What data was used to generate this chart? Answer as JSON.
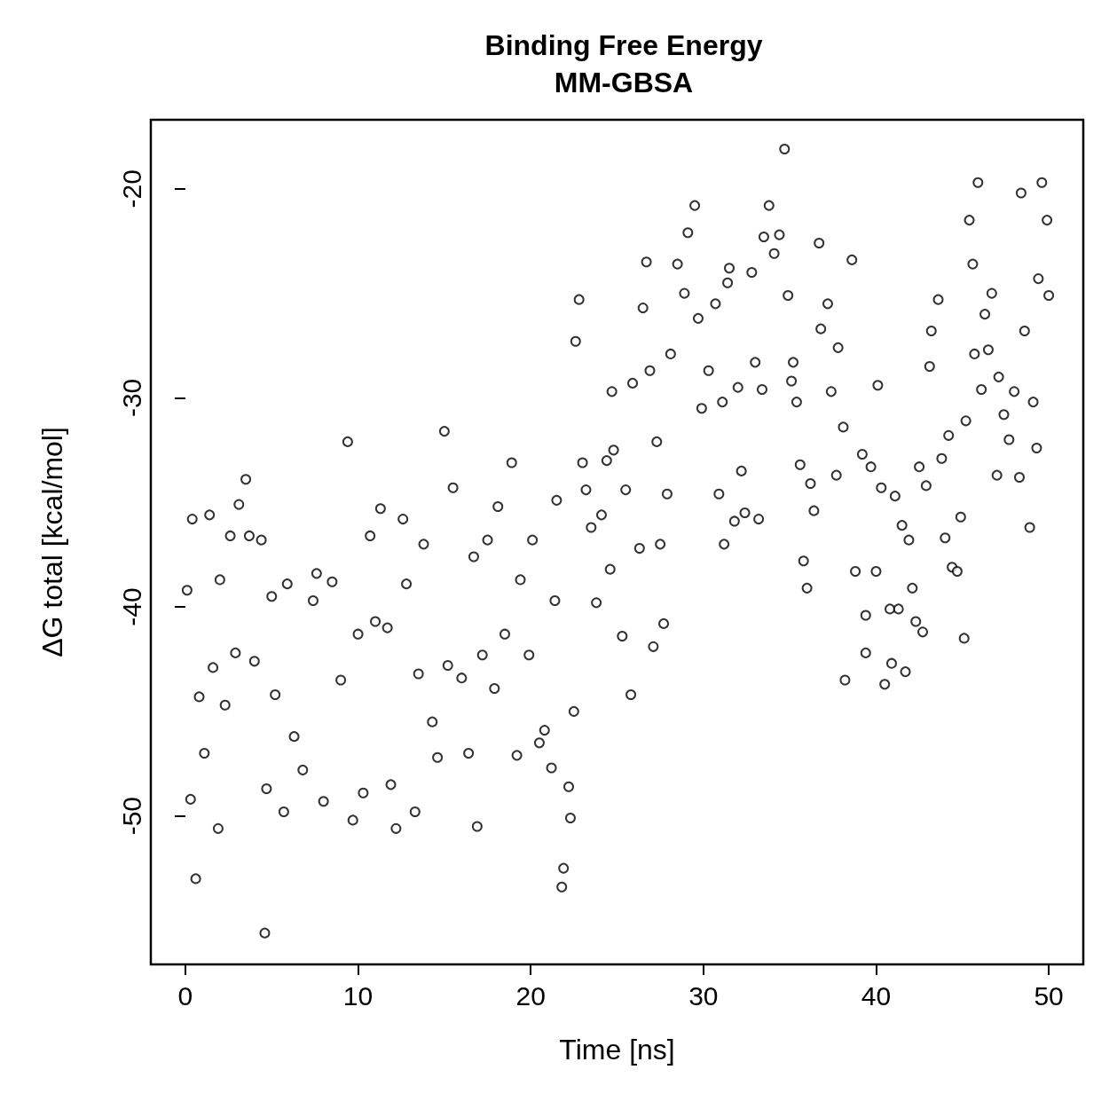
{
  "chart_data": {
    "type": "scatter",
    "title": "Binding Free Energy",
    "subtitle": "MM-GBSA",
    "xlabel": "Time [ns]",
    "ylabel": "ΔG total [kcal/mol]",
    "xlim": [
      -2,
      52
    ],
    "xticks": [
      0,
      10,
      20,
      30,
      40,
      50
    ],
    "ylim": [
      -57.1,
      -16.7
    ],
    "yticks": [
      -50,
      -40,
      -30,
      -20
    ],
    "grid": false,
    "marker": "circle",
    "series": [
      {
        "color": "#000000",
        "x": [
          0.1,
          0.3,
          0.4,
          0.6,
          0.8,
          1.1,
          1.4,
          1.6,
          1.9,
          2.0,
          2.3,
          2.6,
          2.9,
          3.1,
          3.5,
          3.7,
          4.0,
          4.4,
          4.6,
          4.7,
          5.0,
          5.2,
          5.7,
          5.9,
          6.3,
          6.8,
          7.4,
          7.6,
          8.0,
          8.5,
          9.0,
          9.4,
          9.7,
          10.0,
          10.3,
          10.7,
          11.0,
          11.3,
          11.7,
          11.9,
          12.2,
          12.6,
          12.8,
          13.3,
          13.5,
          13.8,
          14.3,
          14.6,
          15.0,
          15.2,
          15.5,
          16.0,
          16.4,
          16.7,
          16.9,
          17.2,
          17.5,
          17.9,
          18.1,
          18.5,
          18.9,
          19.2,
          19.4,
          19.9,
          20.1,
          20.5,
          20.8,
          21.2,
          21.4,
          21.5,
          21.8,
          21.9,
          22.2,
          22.3,
          22.5,
          22.6,
          22.8,
          23.0,
          23.2,
          23.5,
          23.8,
          24.1,
          24.4,
          24.6,
          24.7,
          24.8,
          25.3,
          25.5,
          25.8,
          25.9,
          26.3,
          26.5,
          26.7,
          26.9,
          27.1,
          27.3,
          27.5,
          27.7,
          27.9,
          28.1,
          28.5,
          28.9,
          29.1,
          29.5,
          29.7,
          29.9,
          30.3,
          30.7,
          30.9,
          31.1,
          31.2,
          31.4,
          31.5,
          31.8,
          32.0,
          32.2,
          32.4,
          32.8,
          33.0,
          33.2,
          33.4,
          33.5,
          33.8,
          34.1,
          34.4,
          34.7,
          34.9,
          35.1,
          35.2,
          35.4,
          35.6,
          35.8,
          36.0,
          36.2,
          36.4,
          36.7,
          36.8,
          37.2,
          37.4,
          37.7,
          37.8,
          38.1,
          38.2,
          38.6,
          38.8,
          39.2,
          39.4,
          39.4,
          39.7,
          40.0,
          40.1,
          40.3,
          40.5,
          40.8,
          40.9,
          41.1,
          41.3,
          41.5,
          41.7,
          41.9,
          42.1,
          42.3,
          42.5,
          42.7,
          42.9,
          43.1,
          43.2,
          43.6,
          43.8,
          44.0,
          44.2,
          44.4,
          44.7,
          44.9,
          45.1,
          45.2,
          45.4,
          45.6,
          45.7,
          45.9,
          46.1,
          46.3,
          46.5,
          46.7,
          47.0,
          47.1,
          47.4,
          47.7,
          48.0,
          48.3,
          48.4,
          48.6,
          48.9,
          49.1,
          49.3,
          49.4,
          49.6,
          49.9,
          50.0
        ],
        "values": [
          -39.2,
          -49.2,
          -35.8,
          -53.0,
          -44.3,
          -47.0,
          -35.6,
          -42.9,
          -50.6,
          -38.7,
          -44.7,
          -36.6,
          -42.2,
          -35.1,
          -33.9,
          -36.6,
          -42.6,
          -36.8,
          -55.6,
          -48.7,
          -39.5,
          -44.2,
          -49.8,
          -38.9,
          -46.2,
          -47.8,
          -39.7,
          -38.4,
          -49.3,
          -38.8,
          -43.5,
          -32.1,
          -50.2,
          -41.3,
          -48.9,
          -36.6,
          -40.7,
          -35.3,
          -41.0,
          -48.5,
          -50.6,
          -35.8,
          -38.9,
          -49.8,
          -43.2,
          -37.0,
          -45.5,
          -47.2,
          -31.6,
          -42.8,
          -34.3,
          -43.4,
          -47.0,
          -37.6,
          -50.5,
          -42.3,
          -36.8,
          -43.9,
          -35.2,
          -41.3,
          -33.1,
          -47.1,
          -38.7,
          -42.3,
          -36.8,
          -46.5,
          -45.9,
          -47.7,
          -39.7,
          -34.9,
          -53.4,
          -52.5,
          -48.6,
          -50.1,
          -45.0,
          -27.3,
          -25.3,
          -33.1,
          -34.4,
          -36.2,
          -39.8,
          -35.6,
          -33.0,
          -38.2,
          -29.7,
          -32.5,
          -41.4,
          -34.4,
          -44.2,
          -29.3,
          -37.2,
          -25.7,
          -23.5,
          -28.7,
          -41.9,
          -32.1,
          -37.0,
          -40.8,
          -34.6,
          -27.9,
          -23.6,
          -25.0,
          -22.1,
          -20.8,
          -26.2,
          -30.5,
          -28.7,
          -25.5,
          -34.6,
          -30.2,
          -37.0,
          -24.5,
          -23.8,
          -35.9,
          -29.5,
          -33.5,
          -35.5,
          -24.0,
          -28.3,
          -35.8,
          -29.6,
          -22.3,
          -20.8,
          -23.1,
          -22.2,
          -18.1,
          -25.1,
          -29.2,
          -28.3,
          -30.2,
          -33.2,
          -37.8,
          -39.1,
          -34.1,
          -35.4,
          -22.6,
          -26.7,
          -25.5,
          -29.7,
          -33.7,
          -27.6,
          -31.4,
          -43.5,
          -23.4,
          -38.3,
          -32.7,
          -40.4,
          -42.2,
          -33.3,
          -38.3,
          -29.4,
          -34.3,
          -43.7,
          -40.1,
          -42.7,
          -34.7,
          -40.1,
          -36.1,
          -43.1,
          -36.8,
          -39.1,
          -40.7,
          -33.3,
          -41.2,
          -34.2,
          -28.5,
          -26.8,
          -25.3,
          -32.9,
          -36.7,
          -31.8,
          -38.1,
          -38.3,
          -35.7,
          -41.5,
          -31.1,
          -21.5,
          -23.6,
          -27.9,
          -19.7,
          -29.6,
          -26.0,
          -27.7,
          -25.0,
          -33.7,
          -29.0,
          -30.8,
          -32.0,
          -29.7,
          -33.8,
          -20.2,
          -26.8,
          -36.2,
          -30.2,
          -32.4,
          -24.3,
          -19.7,
          -21.5,
          -25.1
        ]
      }
    ]
  }
}
